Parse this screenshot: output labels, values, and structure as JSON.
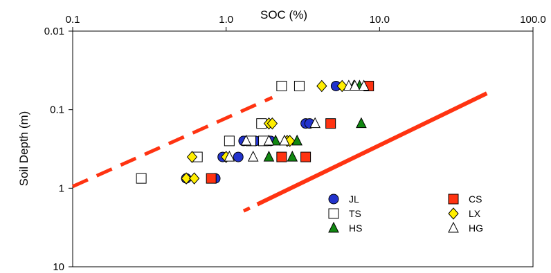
{
  "chart_data": {
    "type": "scatter",
    "title": "",
    "xlabel": "SOC (%)",
    "ylabel": "Soil Depth (m)",
    "x_scale": "log",
    "y_scale": "log",
    "y_inverted": true,
    "xlim": [
      0.1,
      100
    ],
    "ylim": [
      0.01,
      10
    ],
    "x_ticks": [
      0.1,
      1,
      10,
      100
    ],
    "x_tick_labels": [
      "0.1",
      "1.0",
      "10.0",
      "100.0"
    ],
    "y_ticks": [
      0.01,
      0.1,
      1,
      10
    ],
    "y_tick_labels": [
      "0.01",
      "0.1",
      "1",
      "10"
    ],
    "x_axis_position": "top",
    "grid": false,
    "legend_position": "bottom-right",
    "series": [
      {
        "name": "JL",
        "marker": "circle",
        "color": "#2233cc",
        "points": [
          [
            5.2,
            0.05
          ],
          [
            3.3,
            0.15
          ],
          [
            3.5,
            0.15
          ],
          [
            1.3,
            0.25
          ],
          [
            1.55,
            0.25
          ],
          [
            1.95,
            0.25
          ],
          [
            0.95,
            0.4
          ],
          [
            1.2,
            0.4
          ],
          [
            0.55,
            0.75
          ],
          [
            0.85,
            0.75
          ]
        ]
      },
      {
        "name": "CS",
        "marker": "square",
        "color": "#ff3311",
        "points": [
          [
            8.5,
            0.05
          ],
          [
            4.8,
            0.15
          ],
          [
            2.3,
            0.4
          ],
          [
            3.3,
            0.4
          ],
          [
            0.8,
            0.75
          ]
        ]
      },
      {
        "name": "TS",
        "marker": "square-open",
        "color": "#ffffff",
        "points": [
          [
            2.3,
            0.05
          ],
          [
            3.0,
            0.05
          ],
          [
            1.7,
            0.15
          ],
          [
            1.05,
            0.25
          ],
          [
            1.45,
            0.25
          ],
          [
            1.75,
            0.25
          ],
          [
            0.65,
            0.4
          ],
          [
            0.28,
            0.75
          ]
        ]
      },
      {
        "name": "LX",
        "marker": "diamond",
        "color": "#ffee00",
        "points": [
          [
            4.2,
            0.05
          ],
          [
            5.7,
            0.05
          ],
          [
            1.9,
            0.15
          ],
          [
            2.0,
            0.15
          ],
          [
            2.5,
            0.25
          ],
          [
            2.6,
            0.25
          ],
          [
            0.6,
            0.4
          ],
          [
            1.0,
            0.4
          ],
          [
            0.55,
            0.75
          ],
          [
            0.62,
            0.75
          ]
        ]
      },
      {
        "name": "HS",
        "marker": "triangle",
        "color": "#118811",
        "points": [
          [
            6.8,
            0.05
          ],
          [
            7.4,
            0.05
          ],
          [
            7.6,
            0.15
          ],
          [
            2.1,
            0.25
          ],
          [
            2.9,
            0.25
          ],
          [
            1.9,
            0.4
          ],
          [
            2.7,
            0.4
          ]
        ]
      },
      {
        "name": "HG",
        "marker": "triangle-open",
        "color": "#ffffff",
        "points": [
          [
            6.3,
            0.05
          ],
          [
            6.9,
            0.05
          ],
          [
            7.9,
            0.05
          ],
          [
            3.8,
            0.15
          ],
          [
            1.35,
            0.25
          ],
          [
            1.9,
            0.25
          ],
          [
            2.4,
            0.25
          ],
          [
            1.05,
            0.4
          ],
          [
            1.5,
            0.4
          ]
        ]
      }
    ],
    "reference_lines": [
      {
        "style": "dashed",
        "color": "#ff3311",
        "points": [
          [
            0.1,
            0.95
          ],
          [
            2.0,
            0.07
          ]
        ]
      },
      {
        "style": "solid-with-dash-start",
        "color": "#ff3311",
        "points": [
          [
            1.3,
            1.95
          ],
          [
            50,
            0.062
          ]
        ]
      }
    ],
    "legend": [
      {
        "name": "JL",
        "marker": "circle",
        "color": "#2233cc"
      },
      {
        "name": "TS",
        "marker": "square-open",
        "color": "#ffffff"
      },
      {
        "name": "HS",
        "marker": "triangle",
        "color": "#118811"
      },
      {
        "name": "CS",
        "marker": "square",
        "color": "#ff3311"
      },
      {
        "name": "LX",
        "marker": "diamond",
        "color": "#ffee00"
      },
      {
        "name": "HG",
        "marker": "triangle-open",
        "color": "#ffffff"
      }
    ]
  }
}
